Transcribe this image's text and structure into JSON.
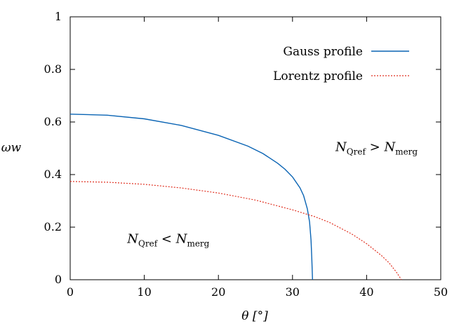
{
  "chart_data": {
    "type": "line",
    "xlabel": "θ [°]",
    "ylabel": "ωw",
    "xlim": [
      0,
      50
    ],
    "ylim": [
      0,
      1
    ],
    "xticks": [
      "0",
      "10",
      "20",
      "30",
      "40",
      "50"
    ],
    "yticks": [
      "0",
      "0.2",
      "0.4",
      "0.6",
      "0.8",
      "1"
    ],
    "grid": false,
    "legend_position": "top-right",
    "series": [
      {
        "name": "Gauss profile",
        "color": "#0a64b4",
        "style": "solid",
        "points": [
          [
            0,
            0.63
          ],
          [
            5,
            0.626
          ],
          [
            10,
            0.612
          ],
          [
            15,
            0.587
          ],
          [
            20,
            0.549
          ],
          [
            24,
            0.508
          ],
          [
            26,
            0.48
          ],
          [
            28,
            0.443
          ],
          [
            29,
            0.42
          ],
          [
            30,
            0.391
          ],
          [
            31,
            0.35
          ],
          [
            31.5,
            0.32
          ],
          [
            32,
            0.27
          ],
          [
            32.3,
            0.22
          ],
          [
            32.5,
            0.15
          ],
          [
            32.6,
            0.08
          ],
          [
            32.7,
            0.0
          ]
        ]
      },
      {
        "name": "Lorentz profile",
        "color": "#e03020",
        "style": "dotted",
        "points": [
          [
            0,
            0.374
          ],
          [
            5,
            0.371
          ],
          [
            10,
            0.363
          ],
          [
            15,
            0.349
          ],
          [
            20,
            0.33
          ],
          [
            25,
            0.303
          ],
          [
            30,
            0.266
          ],
          [
            33,
            0.24
          ],
          [
            35,
            0.218
          ],
          [
            38,
            0.174
          ],
          [
            40,
            0.137
          ],
          [
            42,
            0.092
          ],
          [
            43,
            0.065
          ],
          [
            44,
            0.03
          ],
          [
            44.7,
            0.0
          ]
        ]
      }
    ],
    "annotations": [
      {
        "id": "upper",
        "base": "N",
        "sub": "Qref",
        "op": ">",
        "base2": "N",
        "sub2": "merg",
        "x": 35.8,
        "y": 0.49
      },
      {
        "id": "lower",
        "base": "N",
        "sub": "Qref",
        "op": "<",
        "base2": "N",
        "sub2": "merg",
        "x": 7.7,
        "y": 0.14
      }
    ]
  }
}
